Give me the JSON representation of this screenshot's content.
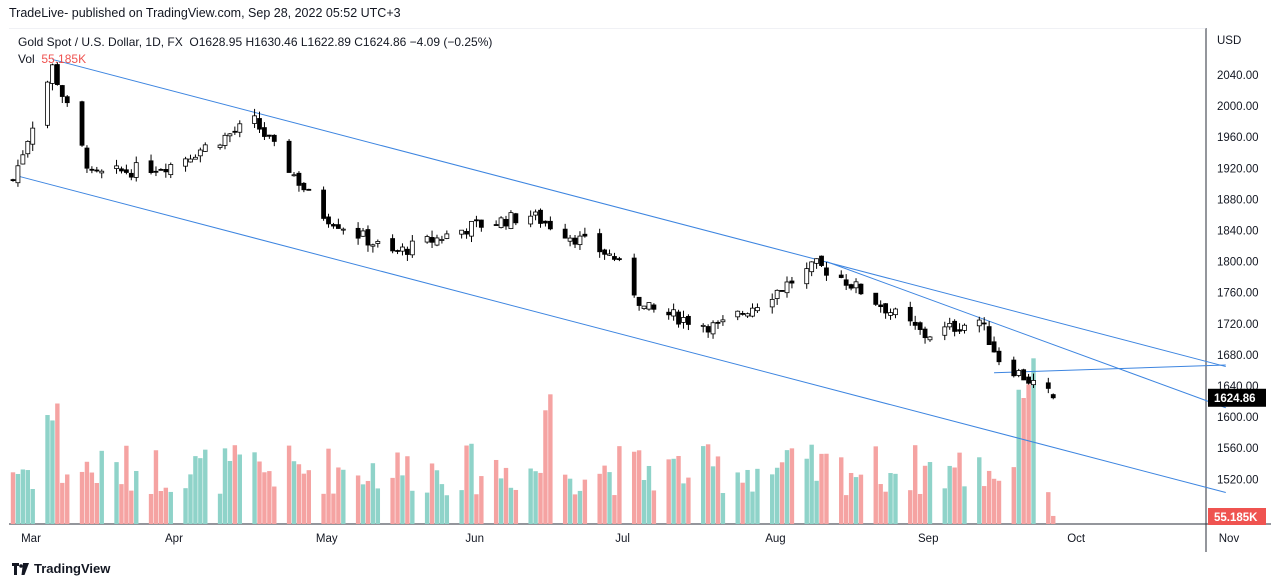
{
  "header": {
    "text": "TradeLive- published on TradingView.com, Sep 28, 2022 05:52 UTC+3"
  },
  "legend": {
    "symbol": "Gold Spot / U.S. Dollar, 1D, FX",
    "open": "O1628.95",
    "high": "H1630.46",
    "low": "L1622.89",
    "close": "C1624.86",
    "change": "−4.09 (−0.25%)",
    "vol_label": "Vol",
    "vol_value": "55.185K"
  },
  "price_axis": {
    "currency": "USD",
    "ticks": [
      "2040.00",
      "2000.00",
      "1960.00",
      "1920.00",
      "1880.00",
      "1840.00",
      "1800.00",
      "1760.00",
      "1720.00",
      "1680.00",
      "1640.00",
      "1600.00",
      "1560.00",
      "1520.00"
    ],
    "last_price_tag": "1624.86",
    "volume_tag": "55.185K"
  },
  "time_axis": {
    "ticks": [
      "Mar",
      "Apr",
      "May",
      "Jun",
      "Jul",
      "Aug",
      "Sep",
      "Oct",
      "Nov"
    ]
  },
  "footer": {
    "brand": "TradingView"
  },
  "colors": {
    "up": "#26a69a",
    "down": "#ef5350",
    "vol_up": "#8fd3c9",
    "vol_down": "#f5a3a2",
    "trendline": "#3d85e0"
  },
  "chart_data": {
    "type": "candlestick",
    "title": "Gold Spot / U.S. Dollar, 1D, FX",
    "ylabel": "USD",
    "ylim": [
      1500,
      2070
    ],
    "last": {
      "open": 1628.95,
      "high": 1630.46,
      "low": 1622.89,
      "close": 1624.86,
      "change": -4.09,
      "change_pct": -0.25,
      "volume": "55.185K"
    },
    "price_path": [
      {
        "date": "Feb 28",
        "close": 1905
      },
      {
        "date": "Mar 8",
        "close": 2050
      },
      {
        "date": "Mar 16",
        "close": 1910
      },
      {
        "date": "Apr 1",
        "close": 1925
      },
      {
        "date": "Apr 18",
        "close": 1980
      },
      {
        "date": "May 2",
        "close": 1860
      },
      {
        "date": "May 16",
        "close": 1810
      },
      {
        "date": "Jun 1",
        "close": 1845
      },
      {
        "date": "Jun 13",
        "close": 1860
      },
      {
        "date": "Jun 30",
        "close": 1805
      },
      {
        "date": "Jul 6",
        "close": 1740
      },
      {
        "date": "Jul 21",
        "close": 1715
      },
      {
        "date": "Aug 10",
        "close": 1795
      },
      {
        "date": "Aug 15",
        "close": 1780
      },
      {
        "date": "Sep 1",
        "close": 1705
      },
      {
        "date": "Sep 12",
        "close": 1725
      },
      {
        "date": "Sep 16",
        "close": 1675
      },
      {
        "date": "Sep 27",
        "close": 1624.86
      }
    ],
    "trendlines": [
      {
        "from": {
          "date": "Mar 8",
          "price": 2060
        },
        "to": {
          "date": "Nov 1",
          "price": 1665
        }
      },
      {
        "from": {
          "date": "Mar 1",
          "price": 1910
        },
        "to": {
          "date": "Nov 1",
          "price": 1503
        }
      },
      {
        "from": {
          "date": "Aug 12",
          "price": 1800
        },
        "to": {
          "date": "Nov 1",
          "price": 1612
        }
      },
      {
        "from": {
          "date": "Sep 15",
          "price": 1657
        },
        "to": {
          "date": "Nov 1",
          "price": 1667
        }
      }
    ]
  }
}
